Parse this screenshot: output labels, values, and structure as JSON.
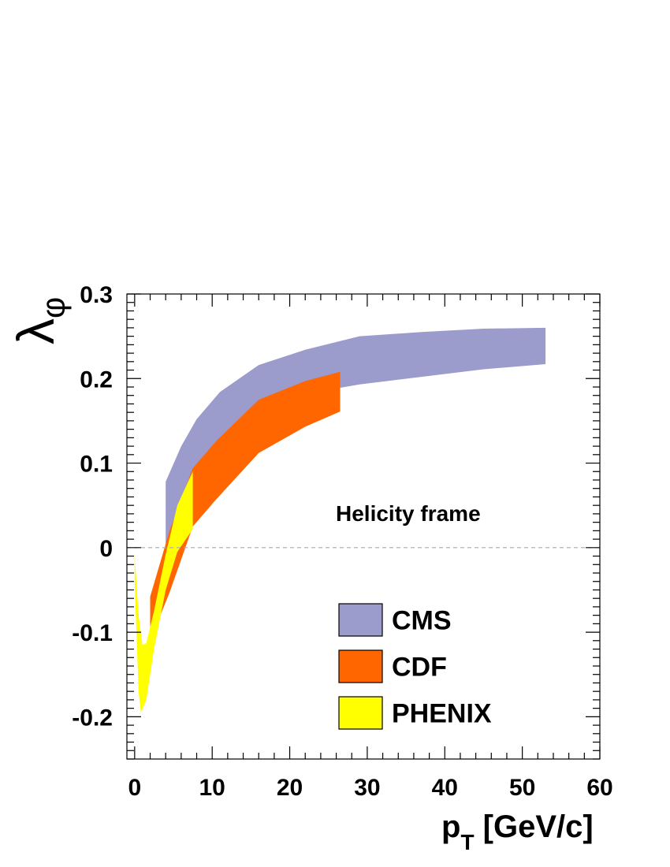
{
  "chart_data": {
    "type": "area",
    "title": "",
    "xlabel": {
      "main": "p",
      "sub": "T",
      "unit": " [GeV/c]"
    },
    "ylabel": {
      "main": "λ",
      "sub": "φ"
    },
    "xlim": [
      -1,
      60
    ],
    "ylim": [
      -0.25,
      0.3
    ],
    "x_ticks": [
      0,
      10,
      20,
      30,
      40,
      50,
      60
    ],
    "x_tick_labels": [
      "0",
      "10",
      "20",
      "30",
      "40",
      "50",
      "60"
    ],
    "y_ticks": [
      -0.2,
      -0.1,
      0,
      0.1,
      0.2,
      0.3
    ],
    "y_tick_labels": [
      "-0.2",
      "-0.1",
      "0",
      "0.1",
      "0.2",
      "0.3"
    ],
    "grid": false,
    "reference_line_y": 0,
    "annotation": "Helicity frame",
    "legend_placement": "bottom-right",
    "series": [
      {
        "name": "CMS",
        "color": "#9b9bcc",
        "upper": [
          [
            4,
            0.078
          ],
          [
            6,
            0.12
          ],
          [
            8,
            0.152
          ],
          [
            11,
            0.184
          ],
          [
            16,
            0.216
          ],
          [
            22,
            0.234
          ],
          [
            29,
            0.25
          ],
          [
            37,
            0.255
          ],
          [
            45,
            0.259
          ],
          [
            53,
            0.26
          ]
        ],
        "lower": [
          [
            4,
            0.003
          ],
          [
            6,
            0.05
          ],
          [
            8,
            0.09
          ],
          [
            11,
            0.125
          ],
          [
            16,
            0.165
          ],
          [
            22,
            0.182
          ],
          [
            29,
            0.193
          ],
          [
            37,
            0.202
          ],
          [
            45,
            0.211
          ],
          [
            53,
            0.217
          ]
        ]
      },
      {
        "name": "CDF",
        "color": "#ff6600",
        "upper": [
          [
            2,
            -0.058
          ],
          [
            4.5,
            0.02
          ],
          [
            7.5,
            0.094
          ],
          [
            10.5,
            0.126
          ],
          [
            16,
            0.175
          ],
          [
            22,
            0.197
          ],
          [
            26.5,
            0.208
          ]
        ],
        "lower": [
          [
            2,
            -0.11
          ],
          [
            4.5,
            -0.053
          ],
          [
            7.5,
            0.025
          ],
          [
            10.5,
            0.057
          ],
          [
            16,
            0.112
          ],
          [
            22,
            0.143
          ],
          [
            26.5,
            0.161
          ]
        ]
      },
      {
        "name": "PHENIX",
        "color": "#ffff00",
        "upper": [
          [
            0,
            -0.008
          ],
          [
            0.5,
            -0.08
          ],
          [
            1,
            -0.115
          ],
          [
            1.5,
            -0.113
          ],
          [
            2.5,
            -0.075
          ],
          [
            4,
            -0.008
          ],
          [
            5.5,
            0.05
          ],
          [
            7.5,
            0.09
          ]
        ],
        "lower": [
          [
            0,
            -0.04
          ],
          [
            0.5,
            -0.17
          ],
          [
            0.8,
            -0.195
          ],
          [
            1.5,
            -0.18
          ],
          [
            2.5,
            -0.12
          ],
          [
            4,
            -0.05
          ],
          [
            5.5,
            -0.005
          ],
          [
            7.5,
            0.022
          ]
        ]
      }
    ]
  }
}
